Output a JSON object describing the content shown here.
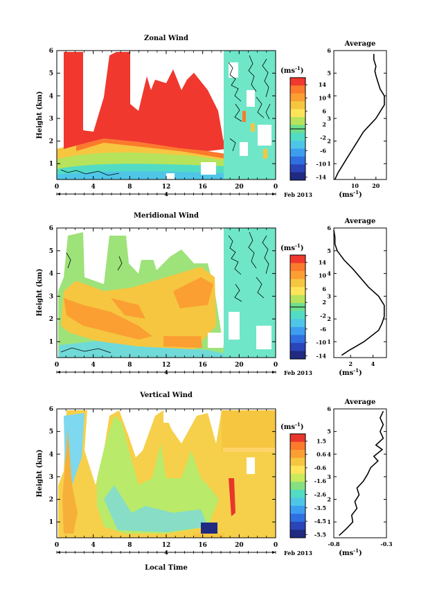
{
  "chart_data": [
    {
      "type": "heatmap",
      "title": "Zonal Wind",
      "ylabel": "Height (km)",
      "ylim": [
        0.3,
        6
      ],
      "yticks": [
        1,
        2,
        3,
        4,
        5,
        6
      ],
      "xlim": [
        0,
        24
      ],
      "xticks": [
        "0",
        "4",
        "8",
        "12",
        "16",
        "20",
        "0"
      ],
      "day_label": "4",
      "month_label": "Feb 2013",
      "colorbar": {
        "unit": "(ms",
        "unit_exp": "-1",
        "unit_close": ")",
        "ticks": [
          "14",
          "10",
          "6",
          "2",
          "-2",
          "-6",
          "-10",
          "-14"
        ],
        "levels": [
          -14,
          14
        ]
      },
      "profile": {
        "title": "Average",
        "xlabel": "(ms",
        "xlabel_exp": "-1",
        "xlabel_close": ")",
        "xticks": [
          "10",
          "20"
        ],
        "xrange": [
          0,
          25
        ],
        "xtick_values": [
          10,
          20
        ],
        "points": [
          [
            0.5,
            0.3
          ],
          [
            2,
            0.6
          ],
          [
            4,
            0.9
          ],
          [
            6,
            1.2
          ],
          [
            8,
            1.5
          ],
          [
            10,
            1.8
          ],
          [
            12,
            2.1
          ],
          [
            14,
            2.4
          ],
          [
            16,
            2.6
          ],
          [
            18,
            2.8
          ],
          [
            20,
            3.0
          ],
          [
            22,
            3.3
          ],
          [
            24,
            3.6
          ],
          [
            24,
            4.0
          ],
          [
            22,
            4.3
          ],
          [
            21,
            4.6
          ],
          [
            20,
            4.9
          ],
          [
            19.5,
            5.1
          ],
          [
            20,
            5.3
          ],
          [
            19,
            5.6
          ],
          [
            19,
            5.85
          ]
        ]
      },
      "regimes": {
        "red_start_km": 2.2,
        "note": ""
      }
    },
    {
      "type": "heatmap",
      "title": "Meridional Wind",
      "ylabel": "Height (km)",
      "ylim": [
        0.3,
        6
      ],
      "yticks": [
        1,
        2,
        3,
        4,
        5,
        6
      ],
      "xlim": [
        0,
        24
      ],
      "xticks": [
        "0",
        "4",
        "8",
        "12",
        "16",
        "20",
        "0"
      ],
      "day_label": "4",
      "month_label": "Feb 2013",
      "colorbar": {
        "unit": "(ms",
        "unit_exp": "-1",
        "unit_close": ")",
        "ticks": [
          "14",
          "10",
          "6",
          "2",
          "-2",
          "-6",
          "-10",
          "-14"
        ],
        "levels": [
          -14,
          14
        ]
      },
      "profile": {
        "title": "Average",
        "xlabel": "(ms",
        "xlabel_exp": "-1",
        "xlabel_close": ")",
        "xticks": [
          "2",
          "4"
        ],
        "xrange": [
          0.5,
          5.2
        ],
        "xtick_values": [
          2,
          4
        ],
        "points": [
          [
            1.2,
            0.4
          ],
          [
            1.8,
            0.6
          ],
          [
            3.2,
            1.0
          ],
          [
            4.5,
            1.5
          ],
          [
            4.8,
            1.8
          ],
          [
            5.0,
            2.1
          ],
          [
            5.0,
            2.6
          ],
          [
            4.5,
            3.0
          ],
          [
            3.6,
            3.4
          ],
          [
            2.9,
            3.8
          ],
          [
            2.2,
            4.2
          ],
          [
            1.4,
            4.6
          ],
          [
            0.8,
            5.0
          ],
          [
            0.6,
            5.3
          ],
          [
            0.6,
            5.6
          ],
          [
            0.5,
            5.9
          ]
        ]
      }
    },
    {
      "type": "heatmap",
      "title": "Vertical Wind",
      "ylabel": "Height (km)",
      "xlabel": "Local Time",
      "ylim": [
        0.3,
        6
      ],
      "yticks": [
        1,
        2,
        3,
        4,
        5,
        6
      ],
      "xlim": [
        0,
        24
      ],
      "xticks": [
        "0",
        "4",
        "8",
        "12",
        "16",
        "20",
        "0"
      ],
      "day_label": "4",
      "month_label": "Feb 2013",
      "colorbar": {
        "unit": "(ms",
        "unit_exp": "-1",
        "unit_close": ")",
        "ticks": [
          "1.5",
          "0.6",
          "-0.6",
          "-1.6",
          "-2.6",
          "-3.5",
          "-4.5",
          "-5.5"
        ],
        "levels": [
          -5.5,
          1.9
        ]
      },
      "profile": {
        "title": "Average",
        "xlabel": "(ms",
        "xlabel_exp": "-1",
        "xlabel_close": ")",
        "xticks": [
          "-0.8",
          "-0.3"
        ],
        "xrange": [
          -0.8,
          -0.3
        ],
        "xtick_values": [
          -0.8,
          -0.3
        ],
        "points": [
          [
            -0.75,
            0.4
          ],
          [
            -0.68,
            0.7
          ],
          [
            -0.62,
            1.0
          ],
          [
            -0.63,
            1.3
          ],
          [
            -0.58,
            1.6
          ],
          [
            -0.6,
            1.9
          ],
          [
            -0.56,
            2.2
          ],
          [
            -0.58,
            2.5
          ],
          [
            -0.52,
            2.8
          ],
          [
            -0.48,
            3.1
          ],
          [
            -0.45,
            3.4
          ],
          [
            -0.38,
            3.7
          ],
          [
            -0.42,
            3.9
          ],
          [
            -0.34,
            4.2
          ],
          [
            -0.4,
            4.4
          ],
          [
            -0.33,
            4.7
          ],
          [
            -0.36,
            5.0
          ],
          [
            -0.33,
            5.3
          ],
          [
            -0.36,
            5.6
          ],
          [
            -0.33,
            5.9
          ]
        ]
      }
    }
  ]
}
